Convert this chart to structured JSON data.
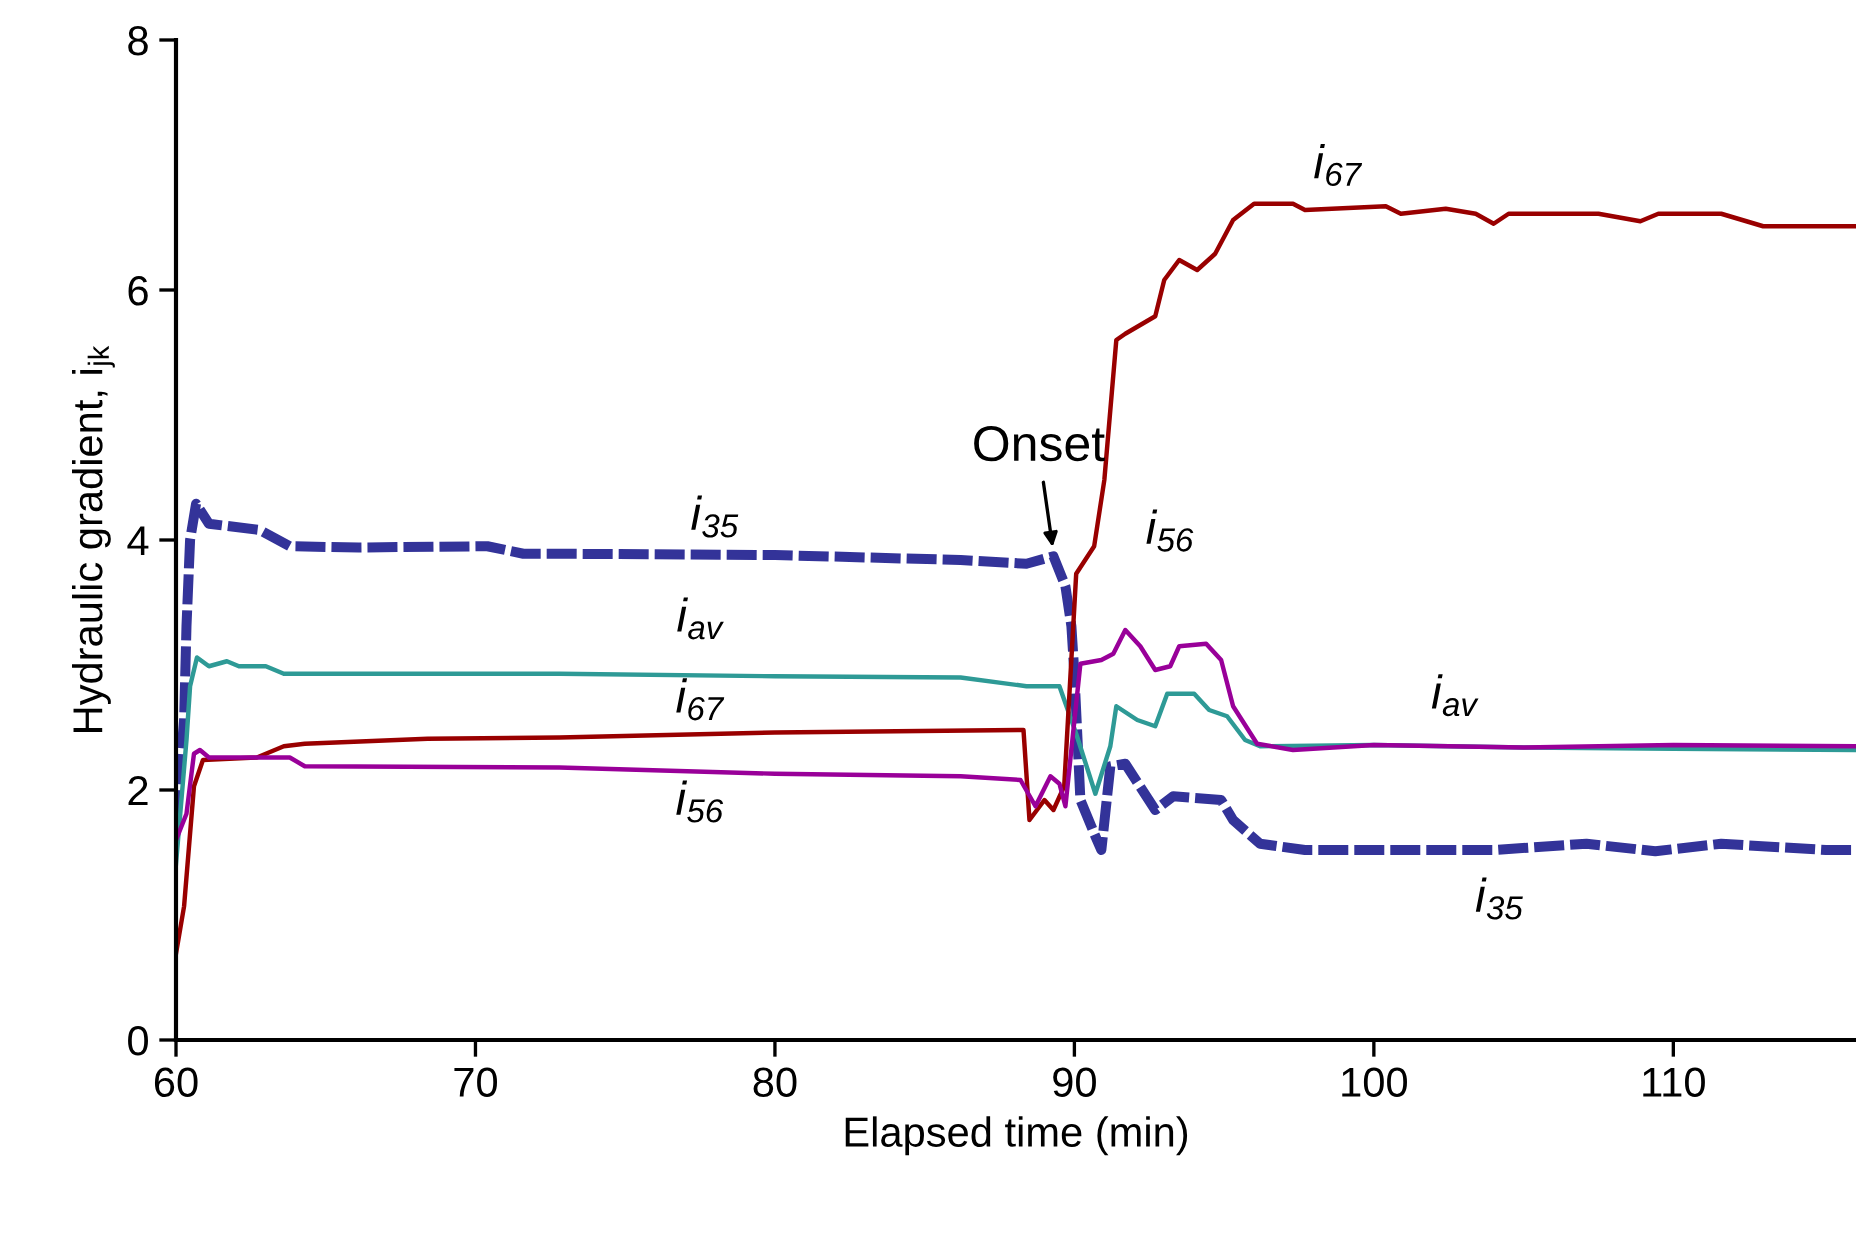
{
  "chart_data": {
    "type": "line",
    "xlabel": "Elapsed time (min)",
    "ylabel": "Hydraulic gradient, i$_{jk}$",
    "xlim": [
      60,
      116.1
    ],
    "xticks": [
      60,
      70,
      80,
      90,
      100,
      110
    ],
    "ylim": [
      0,
      8
    ],
    "yticks": [
      0,
      2,
      4,
      6,
      8
    ],
    "grid": false,
    "marker": "none",
    "series": [
      {
        "color": "#333399",
        "line_style": "dashed",
        "x": [
          60,
          60.27,
          60.35,
          60.47,
          60.67,
          61.1,
          62.8,
          63.8,
          66.1,
          70.4,
          71.6,
          72.8,
          80,
          86.2,
          88.4,
          89.3,
          89.7,
          89.9,
          90.0,
          90.2,
          90.7,
          90.9,
          91.2,
          91.7,
          92.7,
          93.3,
          94.9,
          95.3,
          96.2,
          97.7,
          104,
          107.1,
          109.4,
          111.6,
          115.1,
          116.1
        ],
        "values": [
          1.76,
          2.56,
          3.31,
          4.0,
          4.29,
          4.13,
          4.08,
          3.95,
          3.94,
          3.95,
          3.89,
          3.89,
          3.88,
          3.84,
          3.81,
          3.87,
          3.63,
          3.31,
          2.93,
          1.92,
          1.63,
          1.52,
          2.19,
          2.21,
          1.84,
          1.95,
          1.92,
          1.76,
          1.57,
          1.52,
          1.52,
          1.57,
          1.51,
          1.57,
          1.52,
          1.52
        ]
      },
      {
        "color": "#2e9a96",
        "line_style": "solid",
        "x": [
          60,
          60.35,
          60.47,
          60.7,
          61.1,
          61.7,
          62.1,
          63.0,
          63.6,
          72.8,
          80,
          86.2,
          88.4,
          89.5,
          90.06,
          90.7,
          91.2,
          91.4,
          92.1,
          92.7,
          93.1,
          94.0,
          94.5,
          95.1,
          95.7,
          96.2,
          100,
          105,
          110,
          116.1
        ],
        "values": [
          1.41,
          2.4,
          2.83,
          3.06,
          2.99,
          3.03,
          2.99,
          2.99,
          2.93,
          2.93,
          2.91,
          2.9,
          2.83,
          2.83,
          2.45,
          1.97,
          2.35,
          2.67,
          2.56,
          2.51,
          2.77,
          2.77,
          2.64,
          2.59,
          2.4,
          2.35,
          2.36,
          2.34,
          2.33,
          2.32
        ]
      },
      {
        "color": "#990000",
        "line_style": "solid",
        "x": [
          60,
          60.27,
          60.6,
          60.9,
          62.7,
          63.6,
          64.3,
          68.4,
          72.8,
          80,
          88.3,
          88.5,
          89.0,
          89.3,
          89.66,
          90.06,
          90.66,
          91.0,
          91.4,
          91.7,
          92.7,
          93.0,
          93.5,
          94.1,
          94.7,
          95.3,
          96.0,
          97.3,
          97.7,
          100.4,
          100.9,
          102.4,
          103.4,
          104.0,
          104.5,
          107.5,
          108.9,
          109.5,
          111.6,
          113.0,
          116.1
        ],
        "values": [
          0.69,
          1.07,
          2.03,
          2.24,
          2.26,
          2.35,
          2.37,
          2.41,
          2.42,
          2.46,
          2.48,
          1.76,
          1.92,
          1.84,
          2.03,
          3.73,
          3.95,
          4.48,
          5.6,
          5.65,
          5.79,
          6.08,
          6.24,
          6.16,
          6.29,
          6.56,
          6.69,
          6.69,
          6.64,
          6.67,
          6.61,
          6.65,
          6.61,
          6.53,
          6.61,
          6.61,
          6.55,
          6.61,
          6.61,
          6.51,
          6.51
        ]
      },
      {
        "color": "#990099",
        "line_style": "solid",
        "x": [
          60,
          60.35,
          60.6,
          60.8,
          61.1,
          63.8,
          64.3,
          72.8,
          80,
          86.2,
          88.2,
          88.7,
          89.2,
          89.5,
          89.7,
          90.2,
          90.9,
          91.3,
          91.7,
          92.2,
          92.7,
          93.2,
          93.5,
          94.4,
          94.9,
          95.3,
          96.1,
          97.3,
          100,
          105,
          110,
          116.1
        ],
        "values": [
          1.6,
          1.81,
          2.29,
          2.32,
          2.26,
          2.26,
          2.19,
          2.18,
          2.13,
          2.11,
          2.08,
          1.87,
          2.11,
          2.05,
          1.87,
          3.01,
          3.04,
          3.09,
          3.28,
          3.15,
          2.96,
          2.99,
          3.15,
          3.17,
          3.04,
          2.67,
          2.37,
          2.32,
          2.36,
          2.34,
          2.36,
          2.35
        ]
      }
    ],
    "annotations": [
      {
        "text": "i$_{35}$",
        "x": 78,
        "y": 3.89
      },
      {
        "text": "i$_{av}$",
        "x": 77.5,
        "y": 2.92
      },
      {
        "text": "i$_{67}$",
        "x": 77.5,
        "y": 2.45
      },
      {
        "text": "i$_{56}$",
        "x": 77.5,
        "y": 2.14
      },
      {
        "text": "i$_{67}$",
        "x": 98.8,
        "y": 6.68
      },
      {
        "text": "i$_{56}$",
        "x": 93.2,
        "y": 3.0
      },
      {
        "text": "i$_{av}$",
        "x": 102.7,
        "y": 2.35
      },
      {
        "text": "i$_{35}$",
        "x": 104.2,
        "y": 1.52
      },
      {
        "text": "Onset",
        "x": 89.3,
        "y": 3.9
      }
    ]
  }
}
